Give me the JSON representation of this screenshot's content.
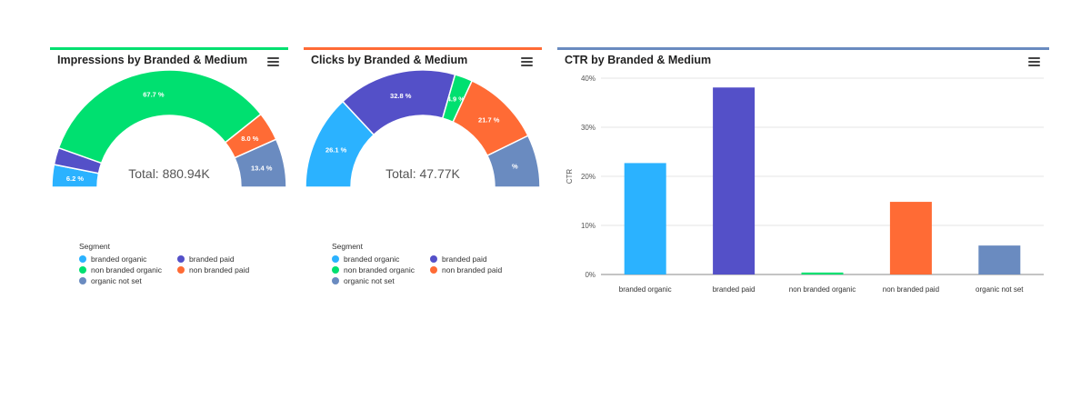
{
  "colors": {
    "branded organic": "#2bb2ff",
    "branded paid": "#5450c8",
    "non branded organic": "#00e070",
    "non branded paid": "#ff6b35",
    "organic not set": "#6a8bc0"
  },
  "legend": {
    "title": "Segment",
    "items": [
      "branded organic",
      "branded paid",
      "non branded organic",
      "non branded paid",
      "organic not set"
    ]
  },
  "chart_data": [
    {
      "type": "pie",
      "variant": "semi-donut",
      "title": "Impressions by Branded & Medium",
      "accent_color": "#00e070",
      "center_label": "Total: 880.94K",
      "categories": [
        "branded organic",
        "branded paid",
        "non branded organic",
        "non branded paid",
        "organic not set"
      ],
      "values": [
        6.2,
        4.7,
        67.7,
        8.0,
        13.4
      ],
      "labels": [
        "6.2 %",
        "",
        "67.7 %",
        "8.0 %",
        "13.4 %"
      ],
      "legend": "bottom-left"
    },
    {
      "type": "pie",
      "variant": "semi-donut",
      "title": "Clicks by Branded & Medium",
      "accent_color": "#ff6b35",
      "center_label": "Total: 47.77K",
      "categories": [
        "branded organic",
        "branded paid",
        "non branded organic",
        "non branded paid",
        "organic not set"
      ],
      "values": [
        26.1,
        32.8,
        4.9,
        21.7,
        14.5
      ],
      "labels": [
        "26.1 %",
        "32.8 %",
        "4.9 %",
        "21.7 %",
        "%"
      ],
      "legend": "bottom-left"
    },
    {
      "type": "bar",
      "title": "CTR by Branded & Medium",
      "accent_color": "#6a8bc0",
      "categories": [
        "branded organic",
        "branded paid",
        "non branded organic",
        "non branded paid",
        "organic not set"
      ],
      "values": [
        22.7,
        38.1,
        0.4,
        14.8,
        5.9
      ],
      "ylabel": "CTR",
      "xlabel": "",
      "ylim": [
        0,
        40
      ],
      "yticks": [
        "0%",
        "10%",
        "20%",
        "30%",
        "40%"
      ],
      "grid": true
    }
  ]
}
